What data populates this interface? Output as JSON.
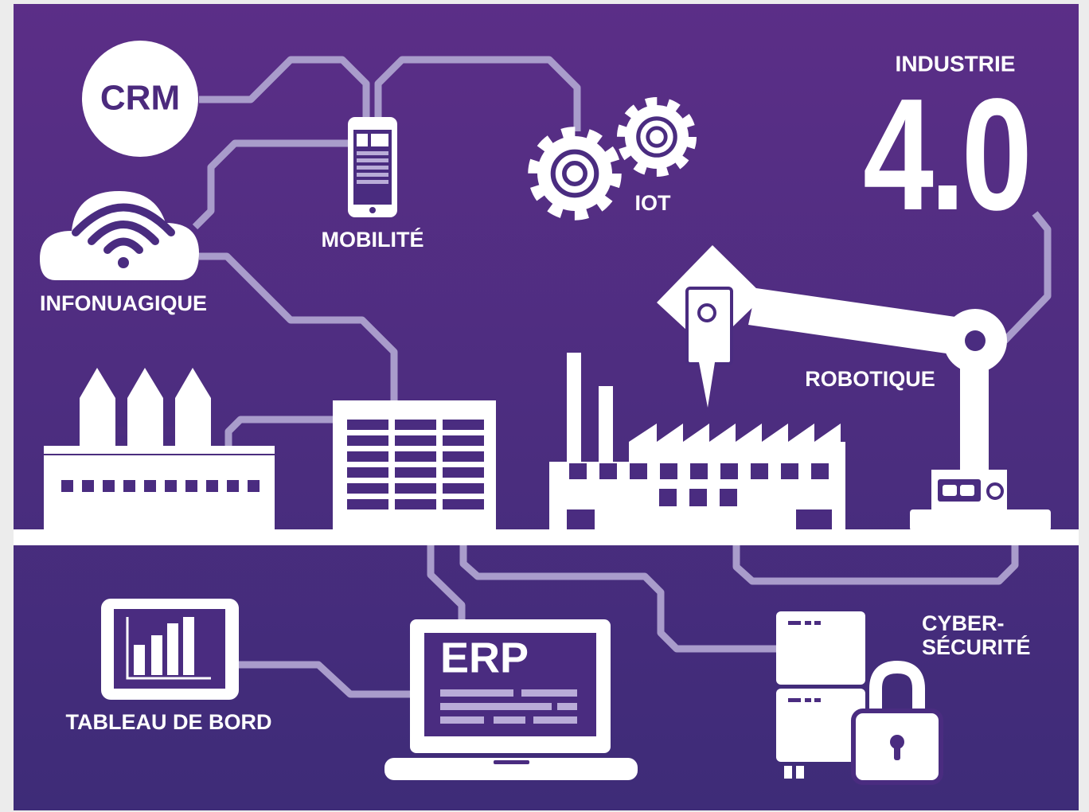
{
  "header": {
    "kicker": "INDUSTRIE",
    "title": "4.0"
  },
  "nodes": [
    {
      "label": "CRM"
    },
    {
      "label": "MOBILITÉ"
    },
    {
      "label": "IOT"
    },
    {
      "label": "INFONUAGIQUE"
    },
    {
      "label": "ROBOTIQUE"
    },
    {
      "label": "TABLEAU DE BORD"
    },
    {
      "label": "ERP"
    },
    {
      "lines": [
        "CYBER-",
        "SÉCURITÉ"
      ]
    }
  ]
}
